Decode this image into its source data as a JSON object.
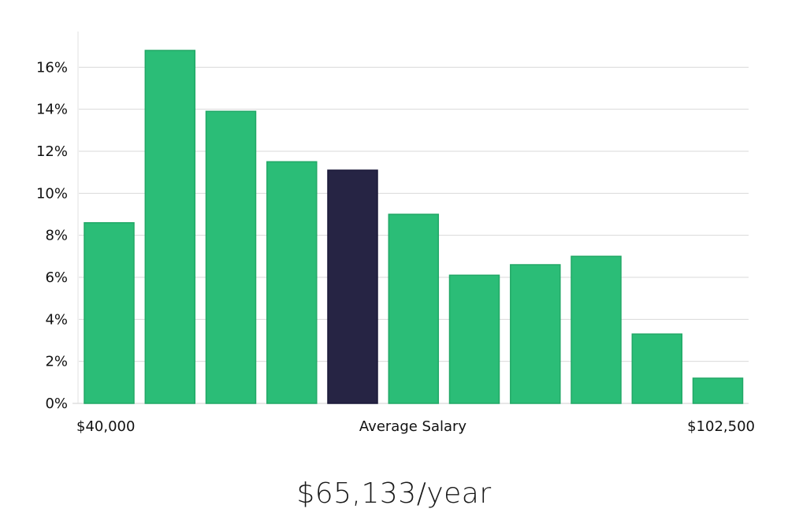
{
  "chart_data": {
    "type": "bar",
    "values": [
      8.6,
      16.8,
      13.9,
      11.5,
      11.1,
      9.0,
      6.1,
      6.6,
      7.0,
      3.3,
      1.2
    ],
    "highlight_index": 4,
    "ylim": [
      0,
      17.7
    ],
    "yticks": [
      0,
      2,
      4,
      6,
      8,
      10,
      12,
      14,
      16
    ],
    "ytick_labels": [
      "0%",
      "2%",
      "4%",
      "6%",
      "8%",
      "10%",
      "12%",
      "14%",
      "16%"
    ],
    "x_min_label": "$40,000",
    "x_mid_label": "Average Salary",
    "x_max_label": "$102,500",
    "grid": true,
    "colors": {
      "bar": "#2bbd77",
      "bar_highlight": "#262444",
      "grid": "#d9d9d9"
    }
  },
  "salary_text": "$65,133/year"
}
